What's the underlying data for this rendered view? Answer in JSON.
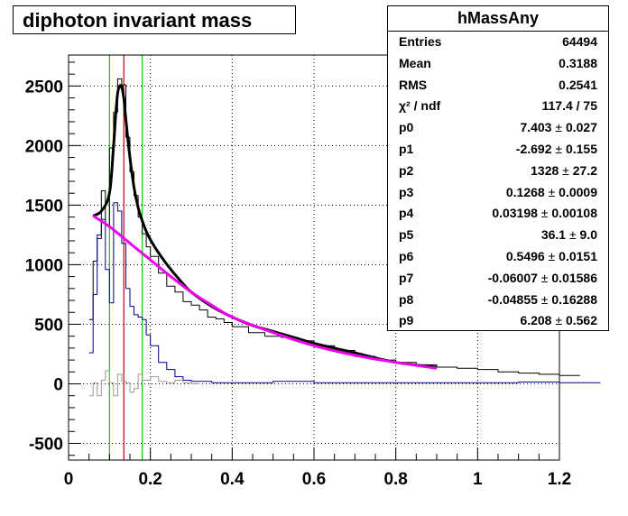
{
  "title": "diphoton invariant mass",
  "stats_box": {
    "name": "hMassAny",
    "rows": [
      {
        "label": "Entries",
        "value": "64494"
      },
      {
        "label": "Mean",
        "value": "0.3188"
      },
      {
        "label": "RMS",
        "value": "0.2541"
      },
      {
        "label": "χ² / ndf",
        "value": "117.4 / 75"
      },
      {
        "label": "p0",
        "value": "7.403",
        "error": "0.027"
      },
      {
        "label": "p1",
        "value": "-2.692",
        "error": "0.155"
      },
      {
        "label": "p2",
        "value": "1328",
        "error": "27.2"
      },
      {
        "label": "p3",
        "value": "0.1268",
        "error": "0.0009"
      },
      {
        "label": "p4",
        "value": "0.03198",
        "error": "0.00108"
      },
      {
        "label": "p5",
        "value": "36.1",
        "error": "9.0"
      },
      {
        "label": "p6",
        "value": "0.5496",
        "error": "0.0151"
      },
      {
        "label": "p7",
        "value": "-0.06007",
        "error": "0.01586"
      },
      {
        "label": "p8",
        "value": "-0.04855",
        "error": "0.16288"
      },
      {
        "label": "p9",
        "value": "6.208",
        "error": "0.562"
      }
    ]
  },
  "chart_data": {
    "type": "line",
    "title": "diphoton invariant mass",
    "xlim": [
      0,
      1.2
    ],
    "ylim": [
      -640,
      2760
    ],
    "grid": true,
    "x_ticks": [
      "0",
      "0.2",
      "0.4",
      "0.6",
      "0.8",
      "1",
      "1.2"
    ],
    "y_ticks": [
      "-500",
      "0",
      "500",
      "1000",
      "1500",
      "2000",
      "2500"
    ],
    "vertical_lines": [
      {
        "x": 0.1,
        "color": "#00cc00"
      },
      {
        "x": 0.135,
        "color": "#cc0000"
      },
      {
        "x": 0.18,
        "color": "#00cc00"
      }
    ],
    "series": [
      {
        "color": "#000000",
        "kind": "step",
        "x": [
          0.05,
          0.06,
          0.07,
          0.08,
          0.09,
          0.1,
          0.11,
          0.12,
          0.13,
          0.14,
          0.15,
          0.16,
          0.17,
          0.18,
          0.19,
          0.2,
          0.22,
          0.24,
          0.26,
          0.28,
          0.3,
          0.32,
          0.34,
          0.36,
          0.38,
          0.4,
          0.44,
          0.48,
          0.52,
          0.56,
          0.6,
          0.65,
          0.7,
          0.75,
          0.8,
          0.85,
          0.9,
          0.95,
          1.0,
          1.05,
          1.1,
          1.15,
          1.2
        ],
        "y": [
          540,
          1030,
          1220,
          1620,
          1330,
          1980,
          2280,
          2560,
          2510,
          2070,
          1780,
          1580,
          1400,
          1260,
          1150,
          1070,
          930,
          820,
          770,
          690,
          660,
          620,
          560,
          545,
          515,
          480,
          430,
          400,
          390,
          360,
          320,
          280,
          230,
          200,
          180,
          160,
          140,
          130,
          120,
          100,
          90,
          80,
          70
        ]
      },
      {
        "color": "#000088",
        "kind": "step",
        "x": [
          0.05,
          0.06,
          0.07,
          0.08,
          0.09,
          0.1,
          0.11,
          0.12,
          0.13,
          0.14,
          0.15,
          0.16,
          0.17,
          0.18,
          0.19,
          0.2,
          0.22,
          0.24,
          0.26,
          0.28,
          0.3,
          0.35,
          0.4,
          0.5,
          0.6,
          0.7,
          0.8,
          0.9,
          1.0,
          1.1,
          1.2
        ],
        "y": [
          260,
          750,
          1250,
          1380,
          960,
          680,
          1520,
          1450,
          1180,
          800,
          650,
          580,
          560,
          540,
          410,
          320,
          180,
          120,
          60,
          30,
          20,
          10,
          10,
          20,
          10,
          10,
          10,
          10,
          10,
          15,
          10
        ]
      },
      {
        "color": "#a09890",
        "kind": "step",
        "x": [
          0.05,
          0.06,
          0.07,
          0.08,
          0.09,
          0.1,
          0.11,
          0.12,
          0.13,
          0.14,
          0.15,
          0.16,
          0.17,
          0.18,
          0.19,
          0.2,
          0.22,
          0.24,
          0.26,
          0.28,
          0.3
        ],
        "y": [
          -100,
          10,
          -100,
          30,
          110,
          10,
          -100,
          80,
          20,
          10,
          -70,
          -40,
          80,
          30,
          30,
          60,
          20,
          10,
          30,
          10,
          0
        ]
      },
      {
        "color": "#000000",
        "kind": "smooth",
        "width": 3,
        "x": [
          0.06,
          0.08,
          0.1,
          0.11,
          0.115,
          0.12,
          0.125,
          0.13,
          0.135,
          0.14,
          0.15,
          0.16,
          0.17,
          0.18,
          0.19,
          0.2,
          0.22,
          0.25,
          0.28,
          0.3,
          0.35,
          0.4,
          0.45,
          0.5,
          0.55,
          0.6,
          0.65,
          0.7,
          0.8,
          0.9
        ],
        "y": [
          1410,
          1450,
          1600,
          2000,
          2250,
          2440,
          2500,
          2490,
          2400,
          2220,
          1900,
          1650,
          1480,
          1370,
          1280,
          1210,
          1100,
          960,
          840,
          770,
          650,
          560,
          490,
          440,
          390,
          340,
          300,
          260,
          180,
          140
        ]
      },
      {
        "color": "#ee00ee",
        "kind": "smooth",
        "width": 3,
        "x": [
          0.06,
          0.1,
          0.15,
          0.2,
          0.25,
          0.3,
          0.35,
          0.4,
          0.5,
          0.6,
          0.7,
          0.8,
          0.9
        ],
        "y": [
          1410,
          1320,
          1180,
          1040,
          900,
          770,
          660,
          560,
          430,
          320,
          240,
          180,
          130
        ]
      }
    ]
  }
}
